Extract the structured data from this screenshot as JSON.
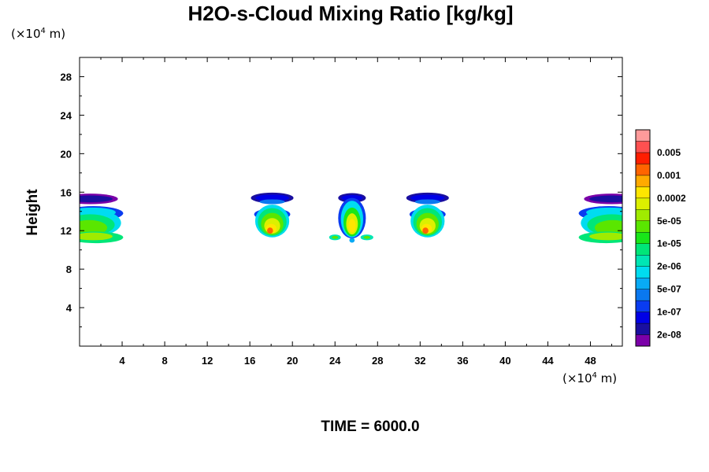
{
  "chart_data": {
    "type": "heatmap",
    "title": "H2O-s-Cloud Mixing Ratio [kg/kg]",
    "xlabel": "",
    "ylabel": "Height",
    "x_unit": {
      "prefix": "(×10",
      "exp": "4",
      "suffix": " m)"
    },
    "y_unit": {
      "prefix": "(×10",
      "exp": "4",
      "suffix": " m)"
    },
    "xlim": [
      0,
      51
    ],
    "ylim": [
      0,
      30
    ],
    "x_ticks": [
      4,
      8,
      12,
      16,
      20,
      24,
      28,
      32,
      36,
      40,
      44,
      48
    ],
    "y_ticks": [
      4,
      8,
      12,
      16,
      20,
      24,
      28
    ],
    "time_label": "TIME = 6000.0",
    "colorbar": {
      "labels": [
        "0.005",
        "0.001",
        "0.0002",
        "5e-05",
        "1e-05",
        "2e-06",
        "5e-07",
        "1e-07",
        "2e-08"
      ],
      "colors_bottom_to_top": [
        "#7b00a8",
        "#1a0fa0",
        "#0000e6",
        "#0a3cf0",
        "#0a78f0",
        "#08aaf5",
        "#00dcf0",
        "#00e6b4",
        "#00e678",
        "#19e619",
        "#5ae600",
        "#a0eb00",
        "#dcf000",
        "#ffe600",
        "#ffaa00",
        "#ff6400",
        "#ff1e00",
        "#ff5050",
        "#ff9a9a"
      ]
    },
    "cloud_features": [
      {
        "name": "left edge cloud",
        "x_range": [
          0,
          3.5
        ],
        "z_range": [
          10.8,
          15.8
        ],
        "peak_level": "5e-05"
      },
      {
        "name": "cloud near x=18",
        "x_range": [
          16.5,
          20.5
        ],
        "z_range": [
          11.3,
          15.8
        ],
        "peak_level": "0.001"
      },
      {
        "name": "central cloud near x=25.6",
        "x_range": [
          23.8,
          27.5
        ],
        "z_range": [
          10.9,
          15.8
        ],
        "peak_level": "0.0002"
      },
      {
        "name": "cloud near x=32.5",
        "x_range": [
          30.5,
          34.5
        ],
        "z_range": [
          11.3,
          15.8
        ],
        "peak_level": "0.001"
      },
      {
        "name": "right edge cloud",
        "x_range": [
          47.5,
          51
        ],
        "z_range": [
          10.8,
          15.8
        ],
        "peak_level": "5e-05"
      }
    ]
  }
}
